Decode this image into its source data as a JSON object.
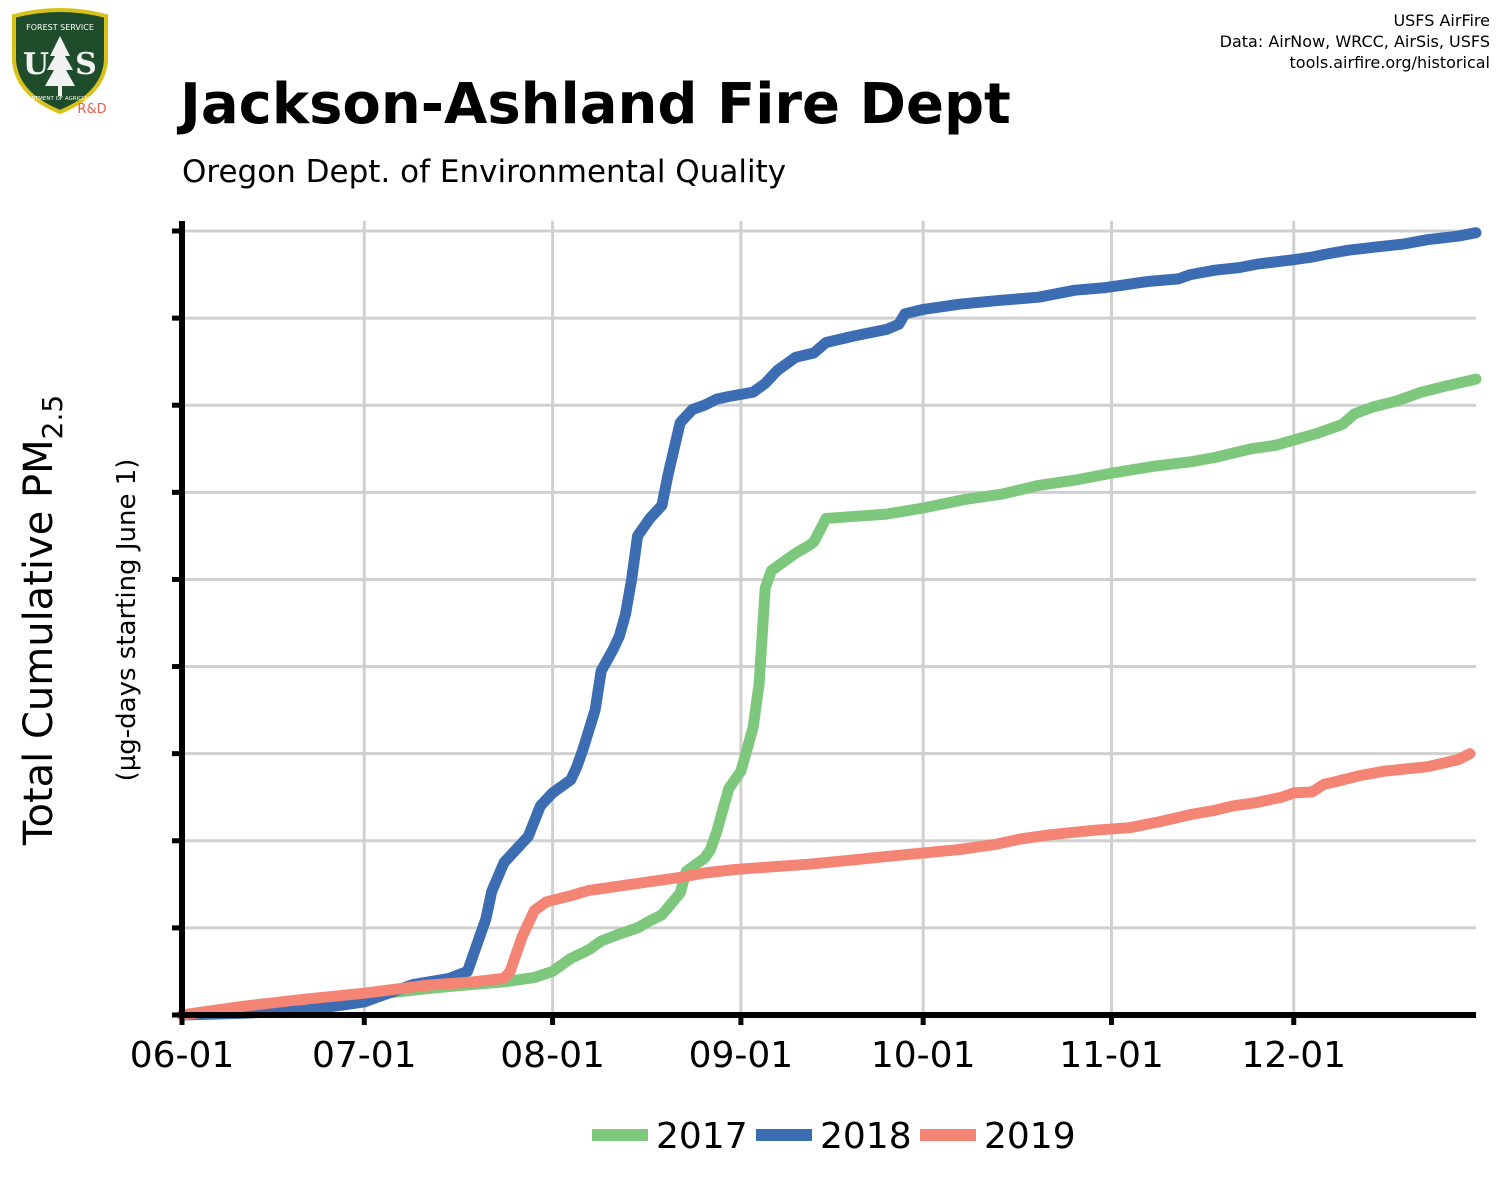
{
  "header": {
    "title": "Jackson-Ashland Fire Dept",
    "subtitle": "Oregon Dept. of Environmental Quality",
    "credits": [
      "USFS AirFire",
      "Data: AirNow, WRCC, AirSis, USFS",
      "tools.airfire.org/historical"
    ]
  },
  "logo": {
    "top_text": "FOREST SERVICE",
    "left_letter": "U",
    "right_letter": "S",
    "bottom_text": "DEPARTMENT OF AGRICULTURE",
    "badge": "R&D",
    "shield_color": "#1f4d2b",
    "rim_color": "#d8c21a",
    "badge_color": "#e8604c",
    "icon": "forest-service-shield-icon"
  },
  "chart_data": {
    "type": "line",
    "title": "Jackson-Ashland Fire Dept",
    "subtitle": "Oregon Dept. of Environmental Quality",
    "ylabel_main": "Total Cumulative PM",
    "ylabel_sub": "2.5",
    "ylabel_units": "(µg-days starting June 1)",
    "xlabel": "",
    "x_ticks": [
      "06-01",
      "07-01",
      "08-01",
      "09-01",
      "10-01",
      "11-01",
      "12-01"
    ],
    "x_tick_days": [
      0,
      30,
      61,
      92,
      122,
      153,
      183
    ],
    "xlim_days": [
      0,
      213
    ],
    "ylim": [
      0,
      9
    ],
    "y_tick_values": [
      0,
      1,
      2,
      3,
      4,
      5,
      6,
      7,
      8,
      9
    ],
    "y_tick_labels_shown": false,
    "grid": true,
    "legend_position": "bottom-center",
    "series": [
      {
        "name": "2017",
        "color": "#7ec87e",
        "points": [
          [
            0,
            0.0
          ],
          [
            10,
            0.05
          ],
          [
            20,
            0.12
          ],
          [
            30,
            0.22
          ],
          [
            40,
            0.3
          ],
          [
            46,
            0.34
          ],
          [
            53,
            0.38
          ],
          [
            58,
            0.43
          ],
          [
            61,
            0.5
          ],
          [
            64,
            0.65
          ],
          [
            67,
            0.75
          ],
          [
            69,
            0.85
          ],
          [
            72,
            0.93
          ],
          [
            75,
            1.0
          ],
          [
            77,
            1.08
          ],
          [
            79,
            1.15
          ],
          [
            82,
            1.4
          ],
          [
            83,
            1.65
          ],
          [
            86,
            1.8
          ],
          [
            87,
            1.9
          ],
          [
            88,
            2.1
          ],
          [
            90,
            2.6
          ],
          [
            92,
            2.8
          ],
          [
            94,
            3.3
          ],
          [
            95,
            3.8
          ],
          [
            96,
            4.9
          ],
          [
            97,
            5.1
          ],
          [
            99,
            5.2
          ],
          [
            101,
            5.3
          ],
          [
            103,
            5.38
          ],
          [
            104,
            5.43
          ],
          [
            106,
            5.7
          ],
          [
            110,
            5.72
          ],
          [
            116,
            5.75
          ],
          [
            122,
            5.82
          ],
          [
            129,
            5.92
          ],
          [
            135,
            5.98
          ],
          [
            141,
            6.08
          ],
          [
            147,
            6.14
          ],
          [
            153,
            6.22
          ],
          [
            160,
            6.3
          ],
          [
            166,
            6.35
          ],
          [
            170,
            6.4
          ],
          [
            173,
            6.45
          ],
          [
            176,
            6.5
          ],
          [
            180,
            6.54
          ],
          [
            183,
            6.6
          ],
          [
            187,
            6.68
          ],
          [
            191,
            6.78
          ],
          [
            193,
            6.9
          ],
          [
            196,
            6.98
          ],
          [
            200,
            7.05
          ],
          [
            204,
            7.15
          ],
          [
            208,
            7.22
          ],
          [
            213,
            7.3
          ]
        ]
      },
      {
        "name": "2018",
        "color": "#3c6db3",
        "points": [
          [
            0,
            0.0
          ],
          [
            10,
            0.02
          ],
          [
            20,
            0.05
          ],
          [
            30,
            0.15
          ],
          [
            38,
            0.35
          ],
          [
            44,
            0.42
          ],
          [
            47,
            0.5
          ],
          [
            48,
            0.7
          ],
          [
            50,
            1.1
          ],
          [
            51,
            1.42
          ],
          [
            53,
            1.75
          ],
          [
            55,
            1.9
          ],
          [
            57,
            2.05
          ],
          [
            59,
            2.4
          ],
          [
            61,
            2.55
          ],
          [
            63,
            2.65
          ],
          [
            64,
            2.7
          ],
          [
            65,
            2.85
          ],
          [
            66,
            3.05
          ],
          [
            68,
            3.5
          ],
          [
            69,
            3.95
          ],
          [
            71,
            4.2
          ],
          [
            72,
            4.35
          ],
          [
            73,
            4.6
          ],
          [
            74,
            5.0
          ],
          [
            75,
            5.5
          ],
          [
            77,
            5.7
          ],
          [
            79,
            5.85
          ],
          [
            80,
            6.2
          ],
          [
            81,
            6.5
          ],
          [
            82,
            6.8
          ],
          [
            84,
            6.95
          ],
          [
            86,
            7.0
          ],
          [
            88,
            7.07
          ],
          [
            90,
            7.1
          ],
          [
            94,
            7.15
          ],
          [
            96,
            7.25
          ],
          [
            98,
            7.4
          ],
          [
            101,
            7.55
          ],
          [
            104,
            7.6
          ],
          [
            106,
            7.72
          ],
          [
            111,
            7.8
          ],
          [
            116,
            7.87
          ],
          [
            118,
            7.93
          ],
          [
            119,
            8.05
          ],
          [
            122,
            8.1
          ],
          [
            125,
            8.13
          ],
          [
            128,
            8.16
          ],
          [
            134,
            8.2
          ],
          [
            141,
            8.24
          ],
          [
            147,
            8.32
          ],
          [
            152,
            8.35
          ],
          [
            155,
            8.38
          ],
          [
            159,
            8.42
          ],
          [
            164,
            8.45
          ],
          [
            166,
            8.5
          ],
          [
            170,
            8.55
          ],
          [
            174,
            8.58
          ],
          [
            177,
            8.62
          ],
          [
            183,
            8.67
          ],
          [
            186,
            8.7
          ],
          [
            188,
            8.73
          ],
          [
            192,
            8.78
          ],
          [
            197,
            8.82
          ],
          [
            201,
            8.85
          ],
          [
            205,
            8.9
          ],
          [
            210,
            8.94
          ],
          [
            213,
            8.98
          ]
        ]
      },
      {
        "name": "2019",
        "color": "#f48474",
        "points": [
          [
            0,
            0.0
          ],
          [
            10,
            0.1
          ],
          [
            20,
            0.18
          ],
          [
            30,
            0.25
          ],
          [
            40,
            0.34
          ],
          [
            48,
            0.38
          ],
          [
            53,
            0.42
          ],
          [
            54,
            0.5
          ],
          [
            56,
            0.9
          ],
          [
            58,
            1.2
          ],
          [
            60,
            1.3
          ],
          [
            64,
            1.37
          ],
          [
            67,
            1.43
          ],
          [
            72,
            1.48
          ],
          [
            77,
            1.53
          ],
          [
            82,
            1.58
          ],
          [
            86,
            1.63
          ],
          [
            91,
            1.67
          ],
          [
            97,
            1.7
          ],
          [
            103,
            1.73
          ],
          [
            109,
            1.77
          ],
          [
            116,
            1.82
          ],
          [
            122,
            1.86
          ],
          [
            128,
            1.9
          ],
          [
            134,
            1.96
          ],
          [
            138,
            2.02
          ],
          [
            143,
            2.07
          ],
          [
            150,
            2.12
          ],
          [
            156,
            2.15
          ],
          [
            161,
            2.22
          ],
          [
            166,
            2.3
          ],
          [
            170,
            2.35
          ],
          [
            173,
            2.4
          ],
          [
            177,
            2.44
          ],
          [
            181,
            2.5
          ],
          [
            183,
            2.55
          ],
          [
            186,
            2.56
          ],
          [
            188,
            2.65
          ],
          [
            190,
            2.68
          ],
          [
            194,
            2.75
          ],
          [
            198,
            2.8
          ],
          [
            205,
            2.85
          ],
          [
            210,
            2.93
          ],
          [
            212,
            3.0
          ]
        ]
      }
    ]
  }
}
